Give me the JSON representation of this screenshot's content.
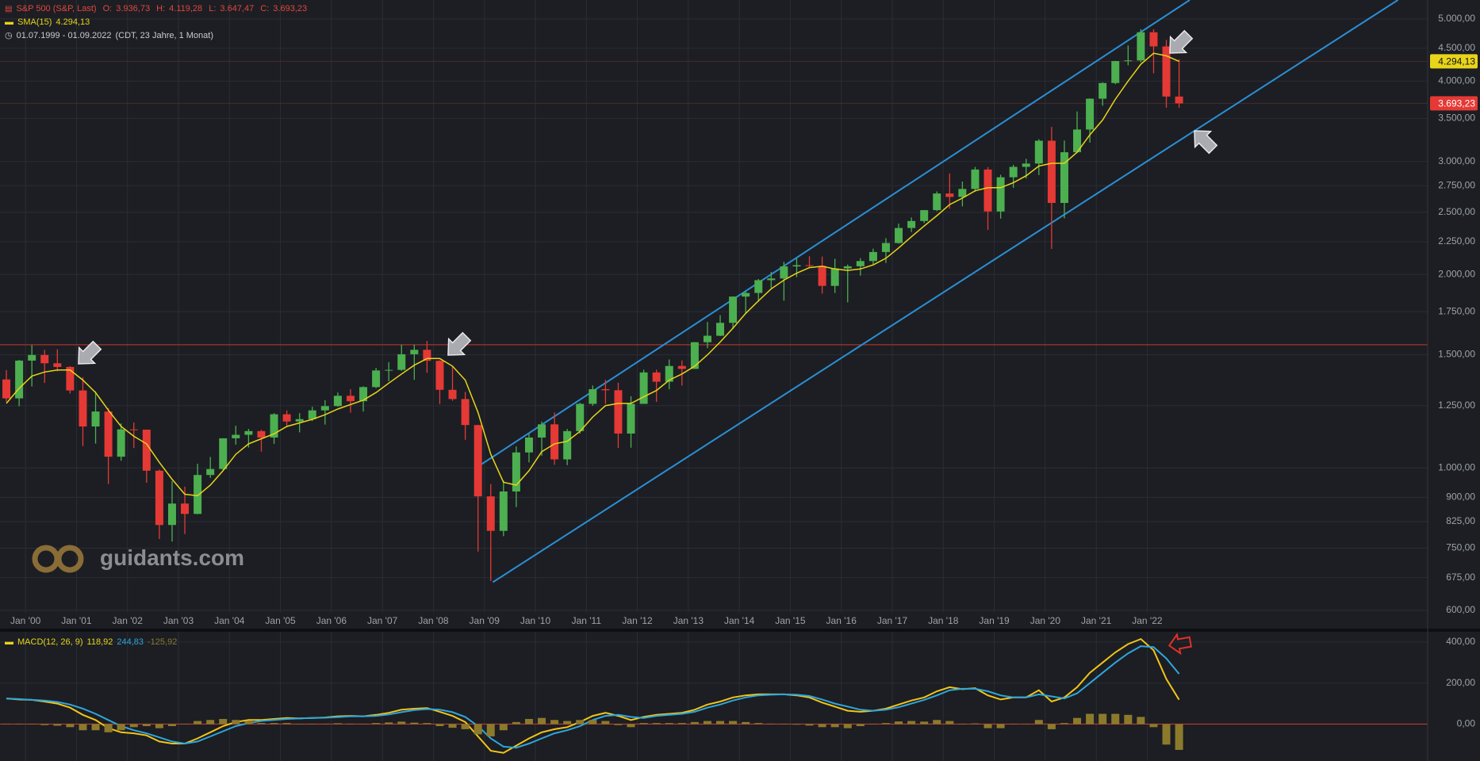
{
  "header": {
    "quote": {
      "name": "S&P 500 (S&P, Last)",
      "items": [
        {
          "key": "O:",
          "value": "3.936,73"
        },
        {
          "key": "H:",
          "value": "4.119,28"
        },
        {
          "key": "L:",
          "value": "3.647,47"
        },
        {
          "key": "C:",
          "value": "3.693,23"
        }
      ]
    },
    "range": "01.07.1999 - 01.09.2022",
    "range_note": "(CDT, 23 Jahre, 1 Monat)",
    "watermark": "guidants.com"
  },
  "chart_data": [
    {
      "type": "candlestick",
      "x": [
        "1999-07",
        "1999-10",
        "2000-01",
        "2000-04",
        "2000-07",
        "2000-10",
        "2001-01",
        "2001-04",
        "2001-07",
        "2001-10",
        "2002-01",
        "2002-04",
        "2002-07",
        "2002-10",
        "2003-01",
        "2003-04",
        "2003-07",
        "2003-10",
        "2004-01",
        "2004-04",
        "2004-07",
        "2004-10",
        "2005-01",
        "2005-04",
        "2005-07",
        "2005-10",
        "2006-01",
        "2006-04",
        "2006-07",
        "2006-10",
        "2007-01",
        "2007-04",
        "2007-07",
        "2007-10",
        "2008-01",
        "2008-04",
        "2008-07",
        "2008-10",
        "2009-01",
        "2009-04",
        "2009-07",
        "2009-10",
        "2010-01",
        "2010-04",
        "2010-07",
        "2010-10",
        "2011-01",
        "2011-04",
        "2011-07",
        "2011-10",
        "2012-01",
        "2012-04",
        "2012-07",
        "2012-10",
        "2013-01",
        "2013-04",
        "2013-07",
        "2013-10",
        "2014-01",
        "2014-04",
        "2014-07",
        "2014-10",
        "2015-01",
        "2015-04",
        "2015-07",
        "2015-10",
        "2016-01",
        "2016-04",
        "2016-07",
        "2016-10",
        "2017-01",
        "2017-04",
        "2017-07",
        "2017-10",
        "2018-01",
        "2018-04",
        "2018-07",
        "2018-10",
        "2019-01",
        "2019-04",
        "2019-07",
        "2019-10",
        "2020-01",
        "2020-04",
        "2020-07",
        "2020-10",
        "2021-01",
        "2021-04",
        "2021-07",
        "2021-10",
        "2022-01",
        "2022-04",
        "2022-07"
      ],
      "open": [
        1373,
        1283,
        1469,
        1499,
        1455,
        1436,
        1320,
        1160,
        1224,
        1041,
        1148,
        1147,
        990,
        815,
        880,
        848,
        975,
        996,
        1112,
        1126,
        1141,
        1115,
        1212,
        1181,
        1191,
        1229,
        1248,
        1295,
        1270,
        1336,
        1418,
        1421,
        1503,
        1527,
        1468,
        1323,
        1280,
        1166,
        903,
        798,
        919,
        1057,
        1115,
        1169,
        1031,
        1141,
        1258,
        1326,
        1321,
        1131,
        1258,
        1408,
        1362,
        1441,
        1426,
        1569,
        1606,
        1682,
        1848,
        1872,
        1960,
        1972,
        2059,
        2068,
        2063,
        1920,
        2044,
        2060,
        2099,
        2168,
        2239,
        2363,
        2423,
        2519,
        2674,
        2641,
        2718,
        2914,
        2507,
        2834,
        2942,
        2977,
        3231,
        2585,
        3100,
        3363,
        3756,
        3973,
        4298,
        4308,
        4766,
        4530,
        3785
      ],
      "high": [
        1420,
        1473,
        1553,
        1527,
        1530,
        1440,
        1384,
        1316,
        1239,
        1173,
        1177,
        1147,
        994,
        954,
        935,
        1015,
        1040,
        1112,
        1163,
        1150,
        1146,
        1217,
        1229,
        1217,
        1245,
        1275,
        1310,
        1326,
        1340,
        1431,
        1461,
        1555,
        1555,
        1576,
        1471,
        1440,
        1313,
        1167,
        944,
        956,
        1080,
        1130,
        1181,
        1220,
        1150,
        1263,
        1344,
        1371,
        1357,
        1293,
        1422,
        1422,
        1475,
        1470,
        1570,
        1687,
        1729,
        1849,
        1883,
        1968,
        2019,
        2093,
        2119,
        2135,
        2133,
        2116,
        2073,
        2121,
        2194,
        2278,
        2401,
        2454,
        2520,
        2694,
        2873,
        2791,
        2941,
        2940,
        2860,
        2964,
        3028,
        3248,
        3394,
        3233,
        3588,
        3760,
        3983,
        4302,
        4546,
        4819,
        4819,
        4637,
        4325
      ],
      "low": [
        1268,
        1247,
        1339,
        1356,
        1413,
        1305,
        1081,
        1091,
        944,
        1026,
        1074,
        948,
        775,
        768,
        789,
        847,
        965,
        990,
        1087,
        1076,
        1060,
        1090,
        1163,
        1136,
        1183,
        1168,
        1245,
        1219,
        1224,
        1331,
        1364,
        1416,
        1371,
        1406,
        1257,
        1272,
        1106,
        741,
        667,
        783,
        869,
        1020,
        1044,
        1011,
        1010,
        1131,
        1249,
        1258,
        1074,
        1075,
        1258,
        1267,
        1325,
        1343,
        1426,
        1536,
        1604,
        1646,
        1737,
        1814,
        1904,
        1821,
        1981,
        2049,
        1867,
        1872,
        1810,
        1992,
        2075,
        2084,
        2234,
        2329,
        2405,
        2510,
        2533,
        2553,
        2691,
        2347,
        2444,
        2729,
        2822,
        2856,
        2192,
        2447,
        3090,
        3209,
        3662,
        3956,
        4233,
        4279,
        4115,
        3637,
        3636
      ],
      "close": [
        1283,
        1469,
        1499,
        1455,
        1436,
        1320,
        1160,
        1224,
        1041,
        1148,
        1147,
        990,
        815,
        880,
        848,
        975,
        996,
        1112,
        1126,
        1141,
        1115,
        1212,
        1181,
        1191,
        1229,
        1248,
        1295,
        1270,
        1336,
        1418,
        1421,
        1503,
        1527,
        1468,
        1323,
        1280,
        1166,
        903,
        798,
        919,
        1057,
        1115,
        1169,
        1031,
        1141,
        1258,
        1326,
        1321,
        1131,
        1258,
        1408,
        1362,
        1441,
        1426,
        1569,
        1606,
        1682,
        1848,
        1872,
        1960,
        1972,
        2059,
        2068,
        2063,
        1920,
        2044,
        2060,
        2099,
        2168,
        2239,
        2363,
        2423,
        2519,
        2674,
        2641,
        2718,
        2914,
        2507,
        2834,
        2942,
        2977,
        3231,
        2585,
        3100,
        3363,
        3756,
        3973,
        4298,
        4308,
        4766,
        4530,
        3785,
        3693.23
      ],
      "sma": {
        "name": "SMA(15)",
        "color": "#e8d41a",
        "last_label": "4.294,13",
        "values": [
          1260,
          1330,
          1390,
          1410,
          1420,
          1420,
          1370,
          1310,
          1230,
          1160,
          1120,
          1090,
          1020,
          960,
          910,
          905,
          940,
          990,
          1050,
          1090,
          1110,
          1130,
          1160,
          1175,
          1190,
          1210,
          1235,
          1255,
          1275,
          1310,
          1355,
          1400,
          1445,
          1480,
          1480,
          1440,
          1370,
          1220,
          1050,
          950,
          940,
          990,
          1060,
          1090,
          1100,
          1140,
          1200,
          1250,
          1260,
          1260,
          1290,
          1320,
          1370,
          1400,
          1440,
          1500,
          1570,
          1650,
          1740,
          1820,
          1900,
          1960,
          2010,
          2050,
          2060,
          2040,
          2030,
          2040,
          2070,
          2120,
          2200,
          2290,
          2380,
          2470,
          2570,
          2630,
          2700,
          2730,
          2730,
          2780,
          2850,
          2950,
          2980,
          2980,
          3100,
          3300,
          3480,
          3750,
          4000,
          4250,
          4420,
          4380,
          4294.13
        ]
      },
      "colors": {
        "up": "#4caf50",
        "down": "#e53935",
        "channel": "#2b8fd6",
        "hline": "#a8322d"
      },
      "channel": [
        {
          "from": {
            "x": "2008-11",
            "y": 1000
          },
          "to": {
            "x": "2022-11",
            "y": 5350
          }
        },
        {
          "from": {
            "x": "2009-03",
            "y": 664
          },
          "to": {
            "x": "2026-12",
            "y": 5350
          }
        }
      ],
      "hline": 1555,
      "log": true,
      "grid": true,
      "xlim": [
        "1999-07",
        "2027-07"
      ],
      "xticks": [
        {
          "value": "2000-01",
          "label": "Jan '00"
        },
        {
          "value": "2001-01",
          "label": "Jan '01"
        },
        {
          "value": "2002-01",
          "label": "Jan '02"
        },
        {
          "value": "2003-01",
          "label": "Jan '03"
        },
        {
          "value": "2004-01",
          "label": "Jan '04"
        },
        {
          "value": "2005-01",
          "label": "Jan '05"
        },
        {
          "value": "2006-01",
          "label": "Jan '06"
        },
        {
          "value": "2007-01",
          "label": "Jan '07"
        },
        {
          "value": "2008-01",
          "label": "Jan '08"
        },
        {
          "value": "2009-01",
          "label": "Jan '09"
        },
        {
          "value": "2010-01",
          "label": "Jan '10"
        },
        {
          "value": "2011-01",
          "label": "Jan '11"
        },
        {
          "value": "2012-01",
          "label": "Jan '12"
        },
        {
          "value": "2013-01",
          "label": "Jan '13"
        },
        {
          "value": "2014-01",
          "label": "Jan '14"
        },
        {
          "value": "2015-01",
          "label": "Jan '15"
        },
        {
          "value": "2016-01",
          "label": "Jan '16"
        },
        {
          "value": "2017-01",
          "label": "Jan '17"
        },
        {
          "value": "2018-01",
          "label": "Jan '18"
        },
        {
          "value": "2019-01",
          "label": "Jan '19"
        },
        {
          "value": "2020-01",
          "label": "Jan '20"
        },
        {
          "value": "2021-01",
          "label": "Jan '21"
        },
        {
          "value": "2022-01",
          "label": "Jan '22"
        }
      ],
      "ylim": [
        595,
        5350
      ],
      "yticks": [
        {
          "value": 600,
          "label": "600,00"
        },
        {
          "value": 675,
          "label": "675,00"
        },
        {
          "value": 750,
          "label": "750,00"
        },
        {
          "value": 825,
          "label": "825,00"
        },
        {
          "value": 900,
          "label": "900,00"
        },
        {
          "value": 1000,
          "label": "1.000,00"
        },
        {
          "value": 1250,
          "label": "1.250,00"
        },
        {
          "value": 1500,
          "label": "1.500,00"
        },
        {
          "value": 1750,
          "label": "1.750,00"
        },
        {
          "value": 2000,
          "label": "2.000,00"
        },
        {
          "value": 2250,
          "label": "2.250,00"
        },
        {
          "value": 2500,
          "label": "2.500,00"
        },
        {
          "value": 2750,
          "label": "2.750,00"
        },
        {
          "value": 3000,
          "label": "3.000,00"
        },
        {
          "value": 3500,
          "label": "3.500,00"
        },
        {
          "value": 4000,
          "label": "4.000,00"
        },
        {
          "value": 4500,
          "label": "4.500,00"
        },
        {
          "value": 5000,
          "label": "5.000,00"
        }
      ]
    },
    {
      "type": "macd",
      "series": [
        {
          "name": "MACD(12, 26, 9)",
          "color": "#f2c418",
          "style": "line",
          "last_label": "118,92",
          "values": [
            125,
            120,
            118,
            110,
            100,
            80,
            45,
            20,
            -20,
            -40,
            -45,
            -55,
            -85,
            -95,
            -95,
            -70,
            -40,
            -10,
            10,
            20,
            20,
            25,
            30,
            28,
            30,
            32,
            38,
            40,
            38,
            45,
            55,
            70,
            75,
            78,
            60,
            40,
            10,
            -60,
            -130,
            -140,
            -105,
            -70,
            -40,
            -25,
            -15,
            10,
            40,
            55,
            40,
            20,
            35,
            45,
            50,
            55,
            70,
            95,
            110,
            130,
            140,
            145,
            145,
            145,
            140,
            130,
            105,
            85,
            65,
            60,
            65,
            75,
            95,
            115,
            130,
            160,
            180,
            170,
            175,
            140,
            120,
            130,
            130,
            165,
            110,
            130,
            180,
            250,
            300,
            350,
            390,
            415,
            360,
            220,
            118.92
          ]
        },
        {
          "color": "#2ea6dc",
          "style": "line",
          "last_label": "244,83",
          "values": [
            125,
            122,
            118,
            115,
            108,
            95,
            75,
            50,
            20,
            -10,
            -30,
            -45,
            -65,
            -85,
            -95,
            -85,
            -60,
            -35,
            -10,
            5,
            15,
            20,
            25,
            28,
            30,
            31,
            34,
            38,
            38,
            40,
            47,
            58,
            68,
            73,
            70,
            58,
            35,
            -10,
            -70,
            -110,
            -115,
            -95,
            -70,
            -45,
            -30,
            -10,
            20,
            40,
            45,
            35,
            30,
            40,
            45,
            50,
            60,
            80,
            95,
            115,
            130,
            140,
            143,
            145,
            143,
            137,
            120,
            100,
            85,
            70,
            65,
            70,
            82,
            100,
            118,
            140,
            165,
            172,
            172,
            160,
            140,
            130,
            130,
            145,
            135,
            125,
            150,
            200,
            250,
            300,
            345,
            380,
            375,
            320,
            244.83
          ]
        },
        {
          "color": "#8c7a2c",
          "style": "bar",
          "last_label": "-125,92",
          "values": [
            0,
            -2,
            0,
            -5,
            -8,
            -15,
            -30,
            -30,
            -40,
            -30,
            -15,
            -10,
            -20,
            -10,
            0,
            15,
            20,
            25,
            20,
            15,
            5,
            5,
            5,
            0,
            0,
            1,
            4,
            2,
            0,
            5,
            8,
            12,
            7,
            5,
            -10,
            -18,
            -25,
            -50,
            -60,
            -30,
            10,
            25,
            30,
            20,
            15,
            20,
            20,
            15,
            -5,
            -15,
            5,
            5,
            5,
            5,
            10,
            15,
            15,
            15,
            10,
            5,
            2,
            0,
            -3,
            -7,
            -15,
            -15,
            -20,
            -10,
            0,
            5,
            13,
            15,
            12,
            20,
            15,
            -2,
            3,
            -20,
            -20,
            0,
            0,
            20,
            -25,
            5,
            30,
            50,
            50,
            50,
            45,
            35,
            -15,
            -100,
            -125.92
          ]
        }
      ],
      "hline": 0,
      "hline_color": "#c0392b",
      "ylim": [
        -180,
        450
      ],
      "yticks": [
        {
          "value": 0,
          "label": "0,00"
        },
        {
          "value": 200,
          "label": "200,00"
        },
        {
          "value": 400,
          "label": "400,00"
        }
      ]
    }
  ]
}
